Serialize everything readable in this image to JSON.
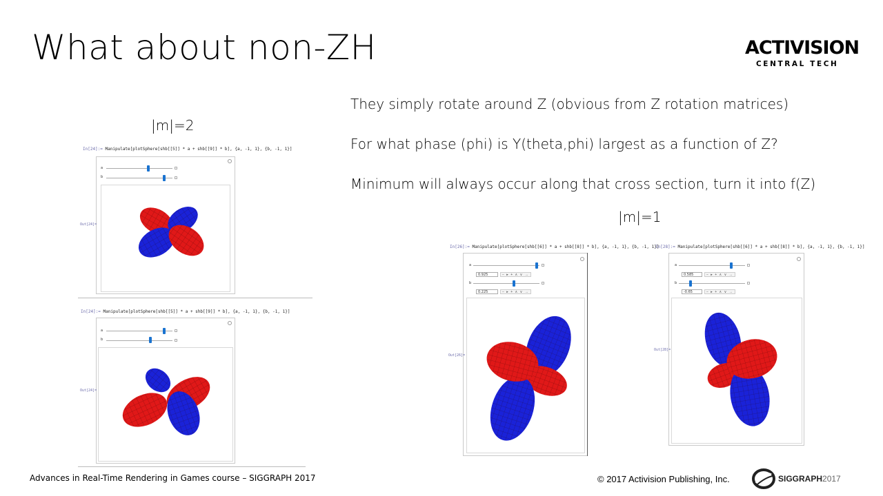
{
  "slide": {
    "title": "What about non-ZH",
    "bullets": [
      "They simply rotate around Z (obvious from Z rotation matrices)",
      "For what phase (phi) is Y(theta,phi) largest as a function of Z?",
      "Minimum will always occur along that cross section, turn it into f(Z)"
    ],
    "label_m2": "|m|=2",
    "label_m1": "|m|=1",
    "footer_left": "Advances in Real-Time Rendering in Games course – SIGGRAPH 2017",
    "footer_right": "© 2017 Activision Publishing, Inc."
  },
  "logos": {
    "activision": "ACTIVISION",
    "activision_sub": "CENTRAL TECH",
    "siggraph": "SIGGRAPH",
    "siggraph_year": "2017"
  },
  "notebook": {
    "cells": [
      {
        "in_label": "In[24]:=",
        "code": "Manipulate[plotSphere[shb[[5]] * a + shb[[9]] * b], {a, -1, 1}, {b, -1, 1}]",
        "out_label": "Out[24]=",
        "slider_a_label": "a",
        "slider_b_label": "b",
        "slider_a_value": 0.28,
        "slider_b_value": 0.75
      },
      {
        "in_label": "In[24]:=",
        "code": "Manipulate[plotSphere[shb[[5]] * a + shb[[9]] * b], {a, -1, 1}, {b, -1, 1}]",
        "out_label": "Out[24]=",
        "slider_a_label": "a",
        "slider_b_label": "b",
        "slider_a_value": 0.75,
        "slider_b_value": 0.33
      },
      {
        "in_label": "In[26]:=",
        "code": "Manipulate[plotSphere[shb[[6]] * a + shb[[8]] * b], {a, -1, 1}, {b, -1, 1}]",
        "out_label": "Out[26]=",
        "slider_a_label": "a",
        "slider_b_label": "b",
        "slider_a_value": 0.925,
        "slider_b_value": 0.225,
        "slider_a_text": "0.925",
        "slider_b_text": "0.225",
        "controls": "− ▸ + ∧ ∨ →"
      },
      {
        "in_label": "In[28]:=",
        "code": "Manipulate[plotSphere[shb[[6]] * a + shb[[8]] * b], {a, -1, 1}, {b, -1, 1}]",
        "out_label": "Out[28]=",
        "slider_a_label": "a",
        "slider_b_label": "b",
        "slider_a_value": 0.585,
        "slider_b_value": -0.65,
        "slider_a_text": "0.585",
        "slider_b_text": "-0.65",
        "controls": "− ▸ + ∧ ∨ →"
      }
    ]
  },
  "colors": {
    "positive_lobe": "#e01818",
    "negative_lobe": "#1a22d8",
    "slider_thumb": "#1a73d0",
    "mesh": "#220000"
  }
}
